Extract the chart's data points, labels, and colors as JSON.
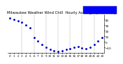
{
  "title": "Milwaukee Weather Wind Chill  Hourly Average  (24 Hours)",
  "hours": [
    0,
    1,
    2,
    3,
    4,
    5,
    6,
    7,
    8,
    9,
    10,
    11,
    12,
    13,
    14,
    15,
    16,
    17,
    18,
    19,
    20,
    21,
    22,
    23
  ],
  "wind_chill": [
    43,
    41,
    38,
    35,
    30,
    25,
    8,
    2,
    -5,
    -10,
    -14,
    -16,
    -17,
    -16,
    -14,
    -12,
    -10,
    -9,
    -11,
    -12,
    -10,
    -5,
    2,
    8
  ],
  "dot_color": "#0000cc",
  "bg_color": "#ffffff",
  "grid_color": "#888888",
  "title_color": "#000000",
  "legend_color": "#0000ff",
  "ylim": [
    -20,
    50
  ],
  "yticks": [
    -10,
    0,
    10,
    20,
    30,
    40
  ],
  "ylabel_fontsize": 3.0,
  "xlabel_fontsize": 3.0,
  "title_fontsize": 3.8,
  "marker_size": 1.2
}
